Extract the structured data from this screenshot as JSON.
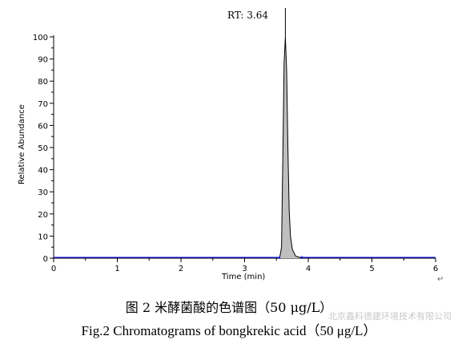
{
  "chart_data": {
    "type": "area",
    "peak_label": "RT: 3.64",
    "xlabel": "Time (min)",
    "ylabel": "Relative Abundance",
    "xlim": [
      0,
      6
    ],
    "ylim": [
      0,
      100
    ],
    "x_ticks": [
      0,
      1,
      2,
      3,
      4,
      5,
      6
    ],
    "y_ticks": [
      0,
      10,
      20,
      30,
      40,
      50,
      60,
      70,
      80,
      90,
      100
    ],
    "grid": false,
    "x": [
      0.0,
      3.55,
      3.58,
      3.6,
      3.62,
      3.64,
      3.66,
      3.68,
      3.7,
      3.72,
      3.75,
      3.8,
      3.9,
      6.0
    ],
    "y": [
      0,
      0,
      5,
      45,
      88,
      100,
      85,
      50,
      22,
      10,
      4,
      1,
      0,
      0
    ],
    "fill_color": "#bfbfbf",
    "line_color": "#000000",
    "baseline_color": "#1a1aff"
  },
  "caption_cn": "图 2  米酵菌酸的色谱图（50 μg/L）",
  "caption_en": "Fig.2 Chromatograms of bongkrekic acid（50 μg/L）",
  "watermark": "北京鑫科德建环境技术有限公司",
  "return_mark": "↵"
}
